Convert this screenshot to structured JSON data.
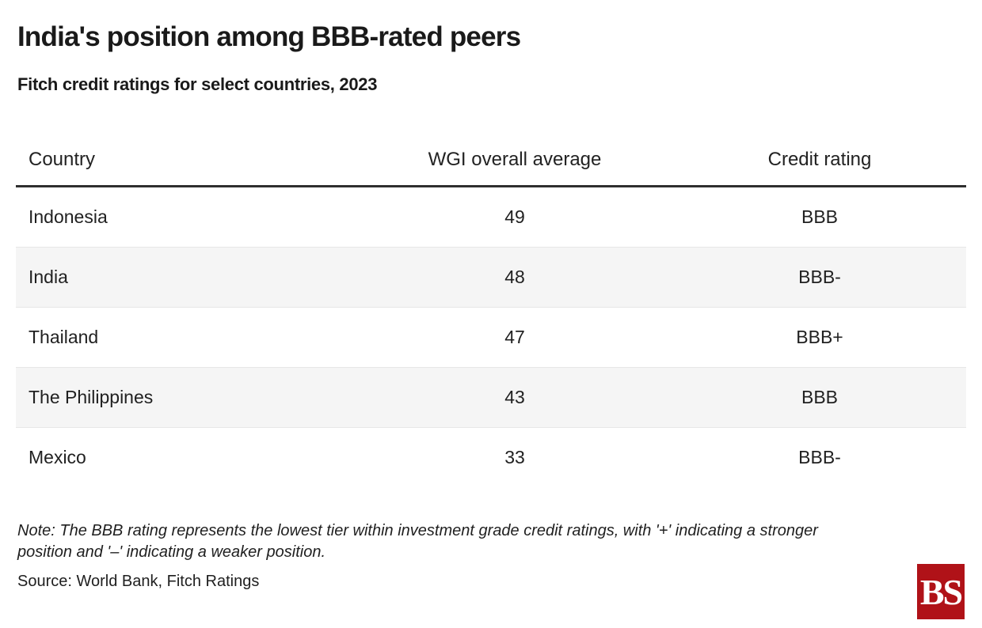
{
  "header": {
    "title": "India's position among BBB-rated peers",
    "subtitle": "Fitch credit ratings for select countries, 2023"
  },
  "chart_data": {
    "type": "table",
    "title": "India's position among BBB-rated peers",
    "subtitle": "Fitch credit ratings for select countries, 2023",
    "columns": [
      "Country",
      "WGI overall average",
      "Credit rating"
    ],
    "rows": [
      {
        "country": "Indonesia",
        "wgi": "49",
        "rating": "BBB"
      },
      {
        "country": "India",
        "wgi": "48",
        "rating": "BBB-"
      },
      {
        "country": "Thailand",
        "wgi": "47",
        "rating": "BBB+"
      },
      {
        "country": "The Philippines",
        "wgi": "43",
        "rating": "BBB"
      },
      {
        "country": "Mexico",
        "wgi": "33",
        "rating": "BBB-"
      }
    ],
    "layout": {
      "striped_rows": "even rows shaded",
      "stripe_color": "#f5f5f5",
      "header_rule_color": "#2e2e2e"
    }
  },
  "footer": {
    "note": "Note: The BBB rating represents the lowest tier within investment grade credit ratings, with '+' indicating a stronger position and '–' indicating a weaker position.",
    "source": "Source: World Bank, Fitch Ratings",
    "logo_text": "BS",
    "logo_color": "#b01218"
  }
}
